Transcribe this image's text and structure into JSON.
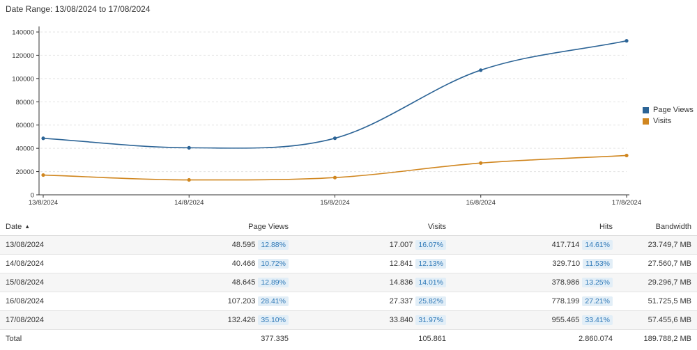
{
  "header": {
    "date_range": "Date Range: 13/08/2024 to 17/08/2024"
  },
  "colors": {
    "page_views": "#2c6496",
    "visits": "#d0861f",
    "percent_text": "#2e78b7",
    "percent_bg": "#e2eef7"
  },
  "legend": {
    "page_views": "Page Views",
    "visits": "Visits"
  },
  "chart_data": {
    "type": "line",
    "categories": [
      "13/8/2024",
      "14/8/2024",
      "15/8/2024",
      "16/8/2024",
      "17/8/2024"
    ],
    "series": [
      {
        "name": "Page Views",
        "values": [
          48595,
          40466,
          48645,
          107203,
          132426
        ]
      },
      {
        "name": "Visits",
        "values": [
          17007,
          12841,
          14836,
          27337,
          33840
        ]
      }
    ],
    "y_ticks": [
      "0",
      "20000",
      "40000",
      "60000",
      "80000",
      "100000",
      "120000",
      "140000"
    ],
    "ylim": [
      0,
      140000
    ],
    "grid": true,
    "legend_position": "right"
  },
  "table": {
    "headers": {
      "date": "Date",
      "date_sort_icon": "sort-ascending-icon",
      "page_views": "Page Views",
      "visits": "Visits",
      "hits": "Hits",
      "bandwidth": "Bandwidth"
    },
    "rows": [
      {
        "date": "13/08/2024",
        "page_views": "48.595",
        "page_views_pct": "12.88%",
        "visits": "17.007",
        "visits_pct": "16.07%",
        "hits": "417.714",
        "hits_pct": "14.61%",
        "bandwidth": "23.749,7 MB"
      },
      {
        "date": "14/08/2024",
        "page_views": "40.466",
        "page_views_pct": "10.72%",
        "visits": "12.841",
        "visits_pct": "12.13%",
        "hits": "329.710",
        "hits_pct": "11.53%",
        "bandwidth": "27.560,7 MB"
      },
      {
        "date": "15/08/2024",
        "page_views": "48.645",
        "page_views_pct": "12.89%",
        "visits": "14.836",
        "visits_pct": "14.01%",
        "hits": "378.986",
        "hits_pct": "13.25%",
        "bandwidth": "29.296,7 MB"
      },
      {
        "date": "16/08/2024",
        "page_views": "107.203",
        "page_views_pct": "28.41%",
        "visits": "27.337",
        "visits_pct": "25.82%",
        "hits": "778.199",
        "hits_pct": "27.21%",
        "bandwidth": "51.725,5 MB"
      },
      {
        "date": "17/08/2024",
        "page_views": "132.426",
        "page_views_pct": "35.10%",
        "visits": "33.840",
        "visits_pct": "31.97%",
        "hits": "955.465",
        "hits_pct": "33.41%",
        "bandwidth": "57.455,6 MB"
      }
    ],
    "total": {
      "label": "Total",
      "page_views": "377.335",
      "visits": "105.861",
      "hits": "2.860.074",
      "bandwidth": "189.788,2 MB"
    }
  }
}
